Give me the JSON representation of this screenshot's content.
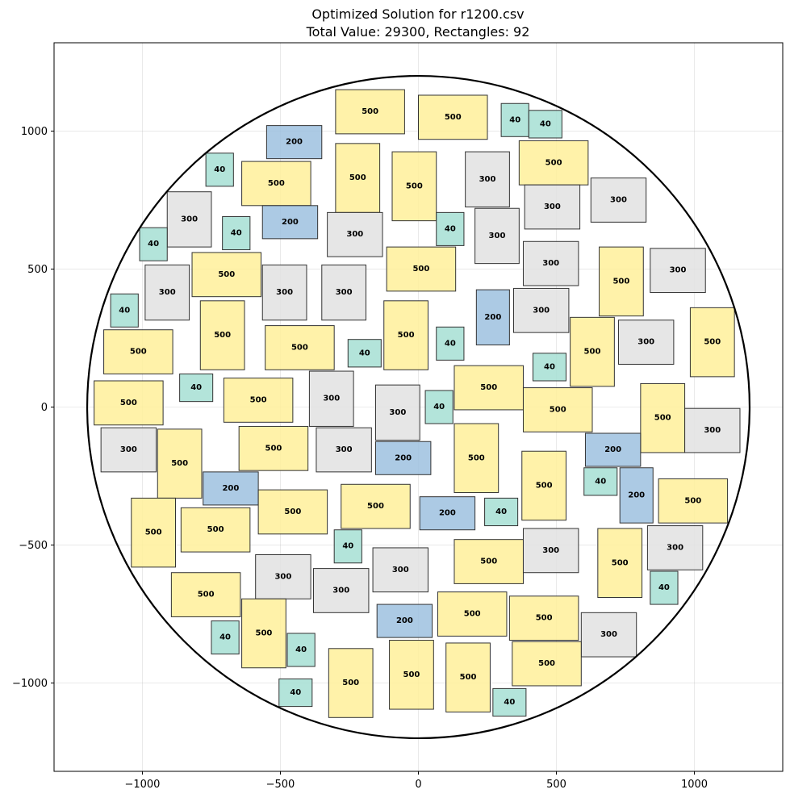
{
  "chart_data": {
    "type": "scatter",
    "title_line1": "Optimized Solution for r1200.csv",
    "title_line2": "Total Value: 29300, Rectangles: 92",
    "xlabel": "",
    "ylabel": "",
    "xlim": [
      -1320,
      1320
    ],
    "ylim": [
      -1320,
      1320
    ],
    "x_ticks": [
      -1000,
      -500,
      0,
      500,
      1000
    ],
    "x_tick_labels": [
      "−1000",
      "−500",
      "0",
      "500",
      "1000"
    ],
    "y_ticks": [
      -1000,
      -500,
      0,
      500,
      1000
    ],
    "y_tick_labels": [
      "−1000",
      "−500",
      "0",
      "500",
      "1000"
    ],
    "grid": true,
    "circle": {
      "cx": 0,
      "cy": 0,
      "r": 1200
    },
    "colors": {
      "40": "#a6dfd4",
      "200": "#9dc1df",
      "300": "#e2e2e2",
      "500": "#fff09a"
    },
    "rectangles": [
      {
        "label": "500",
        "x": -300,
        "y": 990,
        "w": 250,
        "h": 160
      },
      {
        "label": "500",
        "x": 0,
        "y": 970,
        "w": 250,
        "h": 160
      },
      {
        "label": "40",
        "x": 300,
        "y": 980,
        "w": 100,
        "h": 120
      },
      {
        "label": "40",
        "x": 400,
        "y": 975,
        "w": 120,
        "h": 100
      },
      {
        "label": "200",
        "x": -550,
        "y": 900,
        "w": 200,
        "h": 120
      },
      {
        "label": "40",
        "x": -770,
        "y": 800,
        "w": 100,
        "h": 120
      },
      {
        "label": "500",
        "x": -640,
        "y": 730,
        "w": 250,
        "h": 160
      },
      {
        "label": "500",
        "x": -300,
        "y": 705,
        "w": 160,
        "h": 250
      },
      {
        "label": "500",
        "x": -95,
        "y": 675,
        "w": 160,
        "h": 250
      },
      {
        "label": "300",
        "x": 170,
        "y": 725,
        "w": 160,
        "h": 200
      },
      {
        "label": "500",
        "x": 365,
        "y": 805,
        "w": 250,
        "h": 160
      },
      {
        "label": "300",
        "x": -910,
        "y": 580,
        "w": 160,
        "h": 200
      },
      {
        "label": "300",
        "x": 385,
        "y": 645,
        "w": 200,
        "h": 160
      },
      {
        "label": "300",
        "x": 625,
        "y": 670,
        "w": 200,
        "h": 160
      },
      {
        "label": "200",
        "x": -565,
        "y": 610,
        "w": 200,
        "h": 120
      },
      {
        "label": "40",
        "x": -710,
        "y": 570,
        "w": 100,
        "h": 120
      },
      {
        "label": "40",
        "x": 65,
        "y": 585,
        "w": 100,
        "h": 120
      },
      {
        "label": "300",
        "x": -330,
        "y": 545,
        "w": 200,
        "h": 160
      },
      {
        "label": "300",
        "x": 205,
        "y": 520,
        "w": 160,
        "h": 200
      },
      {
        "label": "40",
        "x": -1010,
        "y": 530,
        "w": 100,
        "h": 120
      },
      {
        "label": "300",
        "x": 380,
        "y": 440,
        "w": 200,
        "h": 160
      },
      {
        "label": "500",
        "x": -820,
        "y": 400,
        "w": 250,
        "h": 160
      },
      {
        "label": "300",
        "x": -565,
        "y": 315,
        "w": 160,
        "h": 200
      },
      {
        "label": "300",
        "x": -350,
        "y": 315,
        "w": 160,
        "h": 200
      },
      {
        "label": "500",
        "x": -115,
        "y": 420,
        "w": 250,
        "h": 160
      },
      {
        "label": "300",
        "x": -990,
        "y": 315,
        "w": 160,
        "h": 200
      },
      {
        "label": "500",
        "x": 655,
        "y": 330,
        "w": 160,
        "h": 250
      },
      {
        "label": "300",
        "x": 840,
        "y": 415,
        "w": 200,
        "h": 160
      },
      {
        "label": "40",
        "x": -1115,
        "y": 290,
        "w": 100,
        "h": 120
      },
      {
        "label": "200",
        "x": 210,
        "y": 225,
        "w": 120,
        "h": 200
      },
      {
        "label": "300",
        "x": 345,
        "y": 270,
        "w": 200,
        "h": 160
      },
      {
        "label": "500",
        "x": -790,
        "y": 135,
        "w": 160,
        "h": 250
      },
      {
        "label": "500",
        "x": -555,
        "y": 135,
        "w": 250,
        "h": 160
      },
      {
        "label": "500",
        "x": -125,
        "y": 135,
        "w": 160,
        "h": 250
      },
      {
        "label": "40",
        "x": -255,
        "y": 145,
        "w": 120,
        "h": 100
      },
      {
        "label": "40",
        "x": 65,
        "y": 170,
        "w": 100,
        "h": 120
      },
      {
        "label": "500",
        "x": 550,
        "y": 75,
        "w": 160,
        "h": 250
      },
      {
        "label": "300",
        "x": 725,
        "y": 155,
        "w": 200,
        "h": 160
      },
      {
        "label": "500",
        "x": 985,
        "y": 110,
        "w": 160,
        "h": 250
      },
      {
        "label": "500",
        "x": -1140,
        "y": 120,
        "w": 250,
        "h": 160
      },
      {
        "label": "40",
        "x": 415,
        "y": 95,
        "w": 120,
        "h": 100
      },
      {
        "label": "40",
        "x": -865,
        "y": 20,
        "w": 120,
        "h": 100
      },
      {
        "label": "500",
        "x": -705,
        "y": -55,
        "w": 250,
        "h": 160
      },
      {
        "label": "300",
        "x": -395,
        "y": -70,
        "w": 160,
        "h": 200
      },
      {
        "label": "300",
        "x": -155,
        "y": -120,
        "w": 160,
        "h": 200
      },
      {
        "label": "40",
        "x": 25,
        "y": -60,
        "w": 100,
        "h": 120
      },
      {
        "label": "500",
        "x": 130,
        "y": -10,
        "w": 250,
        "h": 160
      },
      {
        "label": "500",
        "x": 380,
        "y": -90,
        "w": 250,
        "h": 160
      },
      {
        "label": "500",
        "x": 805,
        "y": -165,
        "w": 160,
        "h": 250
      },
      {
        "label": "300",
        "x": 965,
        "y": -165,
        "w": 200,
        "h": 160
      },
      {
        "label": "500",
        "x": -1175,
        "y": -65,
        "w": 250,
        "h": 160
      },
      {
        "label": "300",
        "x": -1150,
        "y": -235,
        "w": 200,
        "h": 160
      },
      {
        "label": "500",
        "x": -945,
        "y": -330,
        "w": 160,
        "h": 250
      },
      {
        "label": "500",
        "x": -650,
        "y": -230,
        "w": 250,
        "h": 160
      },
      {
        "label": "300",
        "x": -370,
        "y": -235,
        "w": 200,
        "h": 160
      },
      {
        "label": "200",
        "x": -155,
        "y": -245,
        "w": 200,
        "h": 120
      },
      {
        "label": "500",
        "x": 130,
        "y": -310,
        "w": 160,
        "h": 250
      },
      {
        "label": "200",
        "x": 605,
        "y": -215,
        "w": 200,
        "h": 120
      },
      {
        "label": "40",
        "x": 600,
        "y": -320,
        "w": 120,
        "h": 100
      },
      {
        "label": "200",
        "x": 730,
        "y": -420,
        "w": 120,
        "h": 200
      },
      {
        "label": "200",
        "x": -780,
        "y": -355,
        "w": 200,
        "h": 120
      },
      {
        "label": "500",
        "x": -1040,
        "y": -580,
        "w": 160,
        "h": 250
      },
      {
        "label": "500",
        "x": -860,
        "y": -525,
        "w": 250,
        "h": 160
      },
      {
        "label": "500",
        "x": -580,
        "y": -460,
        "w": 250,
        "h": 160
      },
      {
        "label": "500",
        "x": -280,
        "y": -440,
        "w": 250,
        "h": 160
      },
      {
        "label": "200",
        "x": 5,
        "y": -445,
        "w": 200,
        "h": 120
      },
      {
        "label": "40",
        "x": 240,
        "y": -430,
        "w": 120,
        "h": 100
      },
      {
        "label": "500",
        "x": 375,
        "y": -410,
        "w": 160,
        "h": 250
      },
      {
        "label": "500",
        "x": 870,
        "y": -420,
        "w": 250,
        "h": 160
      },
      {
        "label": "40",
        "x": -305,
        "y": -565,
        "w": 100,
        "h": 120
      },
      {
        "label": "500",
        "x": 130,
        "y": -640,
        "w": 250,
        "h": 160
      },
      {
        "label": "300",
        "x": 380,
        "y": -600,
        "w": 200,
        "h": 160
      },
      {
        "label": "500",
        "x": 650,
        "y": -690,
        "w": 160,
        "h": 250
      },
      {
        "label": "300",
        "x": 830,
        "y": -590,
        "w": 200,
        "h": 160
      },
      {
        "label": "300",
        "x": -590,
        "y": -695,
        "w": 200,
        "h": 160
      },
      {
        "label": "300",
        "x": -380,
        "y": -745,
        "w": 200,
        "h": 160
      },
      {
        "label": "300",
        "x": -165,
        "y": -670,
        "w": 200,
        "h": 160
      },
      {
        "label": "40",
        "x": 840,
        "y": -715,
        "w": 100,
        "h": 120
      },
      {
        "label": "500",
        "x": -895,
        "y": -760,
        "w": 250,
        "h": 160
      },
      {
        "label": "200",
        "x": -150,
        "y": -835,
        "w": 200,
        "h": 120
      },
      {
        "label": "500",
        "x": 70,
        "y": -830,
        "w": 250,
        "h": 160
      },
      {
        "label": "500",
        "x": 330,
        "y": -845,
        "w": 250,
        "h": 160
      },
      {
        "label": "300",
        "x": 590,
        "y": -905,
        "w": 200,
        "h": 160
      },
      {
        "label": "40",
        "x": -750,
        "y": -895,
        "w": 100,
        "h": 120
      },
      {
        "label": "500",
        "x": -640,
        "y": -945,
        "w": 160,
        "h": 250
      },
      {
        "label": "40",
        "x": -475,
        "y": -940,
        "w": 100,
        "h": 120
      },
      {
        "label": "500",
        "x": -325,
        "y": -1125,
        "w": 160,
        "h": 250
      },
      {
        "label": "500",
        "x": -105,
        "y": -1095,
        "w": 160,
        "h": 250
      },
      {
        "label": "500",
        "x": 100,
        "y": -1105,
        "w": 160,
        "h": 250
      },
      {
        "label": "500",
        "x": 340,
        "y": -1010,
        "w": 250,
        "h": 160
      },
      {
        "label": "40",
        "x": -505,
        "y": -1085,
        "w": 120,
        "h": 100
      },
      {
        "label": "40",
        "x": 270,
        "y": -1120,
        "w": 120,
        "h": 100
      }
    ]
  }
}
